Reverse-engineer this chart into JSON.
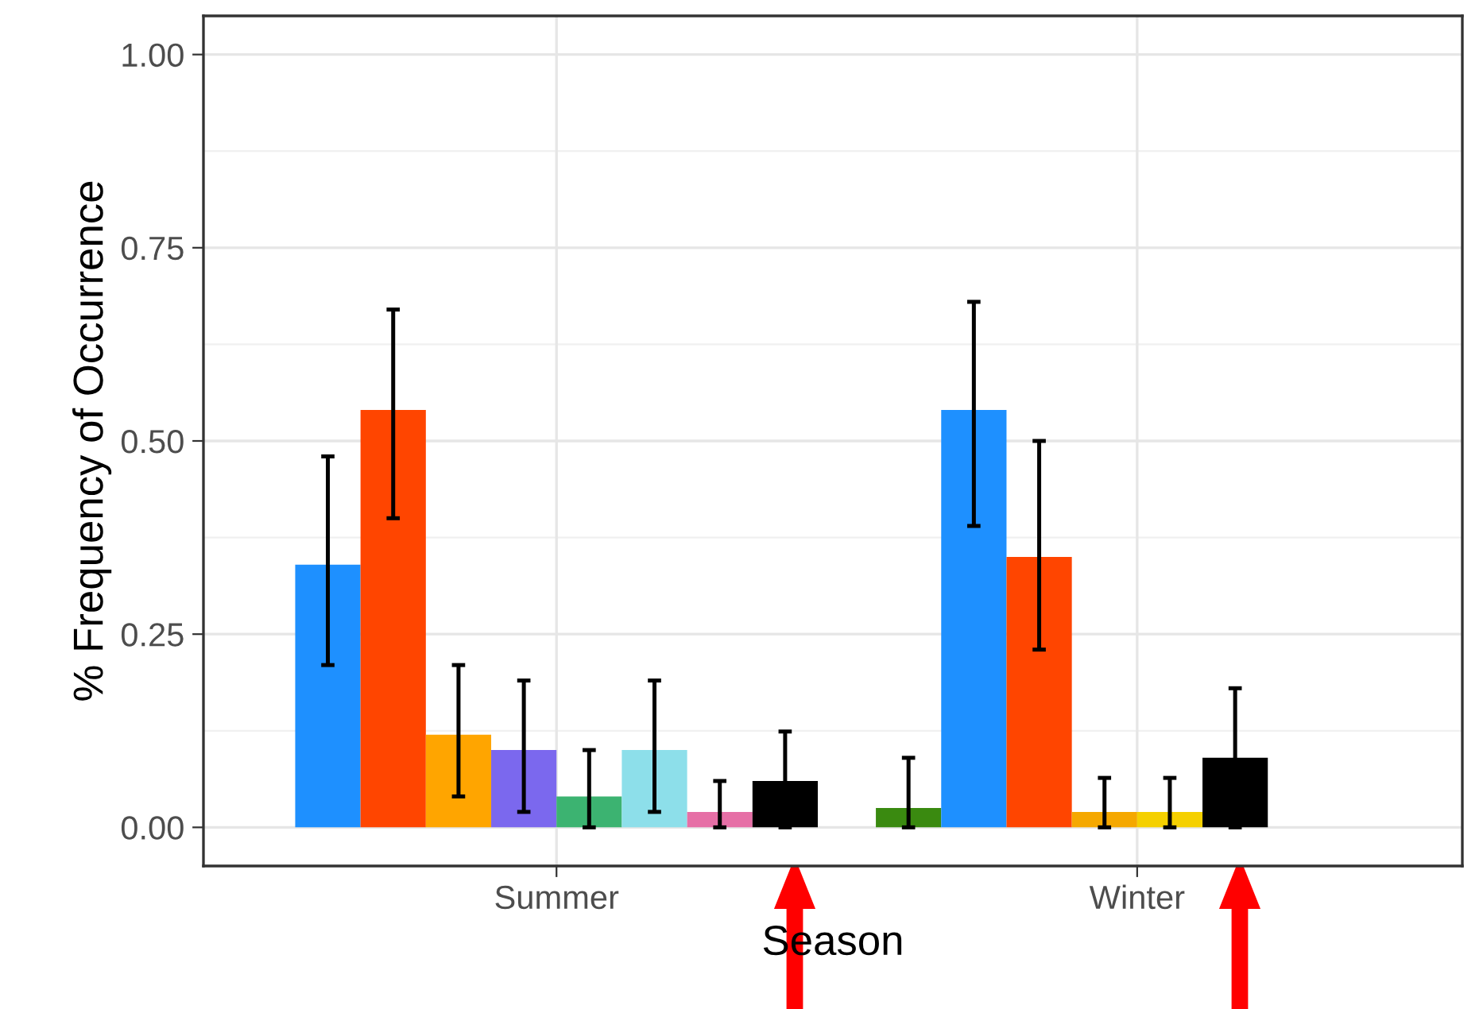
{
  "chart_data": {
    "type": "bar",
    "xlabel": "Season",
    "ylabel": "% Frequency of Occurrence",
    "categories": [
      "Summer",
      "Winter"
    ],
    "series": [
      {
        "colors": [
          "#1e90ff",
          "#3a8a10"
        ],
        "values": [
          0.34,
          0.025
        ],
        "errors": [
          [
            0.21,
            0.48
          ],
          [
            0.0,
            0.09
          ]
        ]
      },
      {
        "colors": [
          "#ff4500",
          "#1e90ff"
        ],
        "values": [
          0.54,
          0.54
        ],
        "errors": [
          [
            0.4,
            0.67
          ],
          [
            0.39,
            0.68
          ]
        ]
      },
      {
        "colors": [
          "#ffa500",
          "#ff4500"
        ],
        "values": [
          0.12,
          0.35
        ],
        "errors": [
          [
            0.04,
            0.21
          ],
          [
            0.23,
            0.5
          ]
        ]
      },
      {
        "colors": [
          "#7b68ee",
          "#f5a800"
        ],
        "values": [
          0.1,
          0.02
        ],
        "errors": [
          [
            0.02,
            0.19
          ],
          [
            0.0,
            0.064
          ]
        ]
      },
      {
        "colors": [
          "#3cb371",
          "#f5d000"
        ],
        "values": [
          0.04,
          0.02
        ],
        "errors": [
          [
            0.0,
            0.1
          ],
          [
            0.0,
            0.064
          ]
        ]
      },
      {
        "colors": [
          "#8ddfea",
          "#000000"
        ],
        "values": [
          0.1,
          0.09
        ],
        "errors": [
          [
            0.02,
            0.19
          ],
          [
            0.0,
            0.18
          ]
        ]
      },
      {
        "colors": [
          "#e66fa6",
          null
        ],
        "values": [
          0.02,
          null
        ],
        "errors": [
          [
            0.0,
            0.06
          ],
          null
        ]
      },
      {
        "colors": [
          "#000000",
          null
        ],
        "values": [
          0.06,
          null
        ],
        "errors": [
          [
            0.0,
            0.124
          ],
          null
        ]
      }
    ],
    "ylim": [
      -0.05,
      1.05
    ],
    "yticks": [
      {
        "value": 0,
        "label": "0.00"
      },
      {
        "value": 0.25,
        "label": "0.25"
      },
      {
        "value": 0.5,
        "label": "0.50"
      },
      {
        "value": 0.75,
        "label": "0.75"
      },
      {
        "value": 1.0,
        "label": "1.00"
      }
    ],
    "grid": true
  }
}
